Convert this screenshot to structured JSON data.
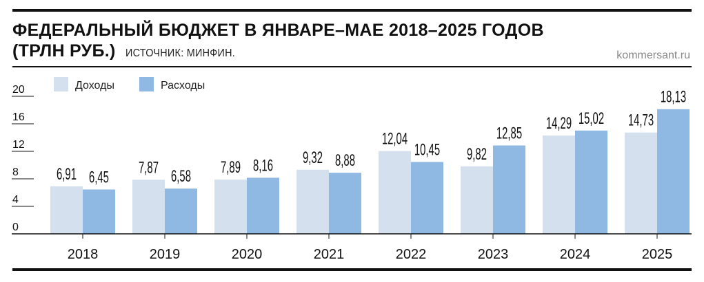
{
  "header": {
    "title_line1": "ФЕДЕРАЛЬНЫЙ БЮДЖЕТ В ЯНВАРЕ–МАЕ 2018–2025 ГОДОВ",
    "title_line2": "(ТРЛН РУБ.)",
    "source": "ИСТОЧНИК: МИНФИН.",
    "site": "kommersant.ru"
  },
  "chart_data": {
    "type": "bar",
    "title": "ФЕДЕРАЛЬНЫЙ БЮДЖЕТ В ЯНВАРЕ–МАЕ 2018–2025 ГОДОВ (ТРЛН РУБ.)",
    "categories": [
      "2018",
      "2019",
      "2020",
      "2021",
      "2022",
      "2023",
      "2024",
      "2025"
    ],
    "series": [
      {
        "name": "Доходы",
        "color": "#d5e0ee",
        "values": [
          6.91,
          7.87,
          7.89,
          9.32,
          12.04,
          9.82,
          14.29,
          14.73
        ],
        "labels": [
          "6,91",
          "7,87",
          "7,89",
          "9,32",
          "12,04",
          "9,82",
          "14,29",
          "14,73"
        ]
      },
      {
        "name": "Расходы",
        "color": "#8fb8e3",
        "values": [
          6.45,
          6.58,
          8.16,
          8.88,
          10.45,
          12.85,
          15.02,
          18.13
        ],
        "labels": [
          "6,45",
          "6,58",
          "8,16",
          "8,88",
          "10,45",
          "12,85",
          "15,02",
          "18,13"
        ]
      }
    ],
    "yticks": [
      "0",
      "4",
      "8",
      "12",
      "16",
      "20"
    ],
    "ylim": [
      0,
      20
    ],
    "xlabel": "",
    "ylabel": "",
    "legend": "top-left",
    "grid": false
  }
}
